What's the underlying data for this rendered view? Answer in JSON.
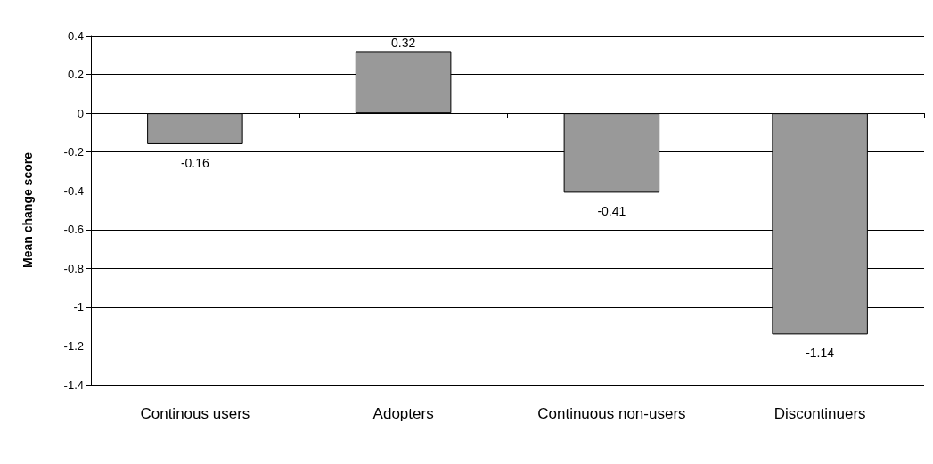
{
  "chart_data": {
    "type": "bar",
    "ylabel": "Mean change score",
    "categories": [
      "Continous users",
      "Adopters",
      "Continuous non-users",
      "Discontinuers"
    ],
    "values": [
      -0.16,
      0.32,
      -0.41,
      -1.14
    ],
    "color": "#999999",
    "ylim": [
      -1.4,
      0.4
    ],
    "yticks": [
      -1.4,
      -1.2,
      -1,
      -0.8,
      -0.6,
      -0.4,
      -0.2,
      0,
      0.2,
      0.4
    ],
    "grid": "y",
    "data_labels": true
  }
}
